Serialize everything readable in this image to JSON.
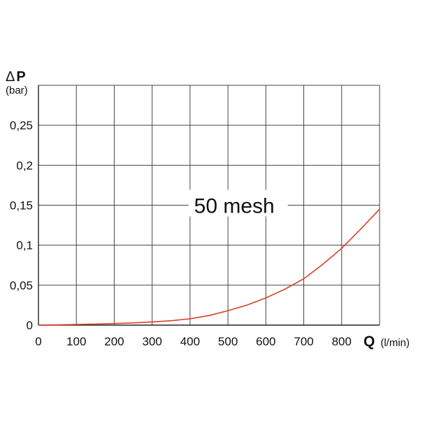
{
  "chart_data": {
    "type": "line",
    "y_axis": {
      "symbol": "Δ",
      "quantity": "P",
      "unit": "(bar)",
      "ylim": [
        0,
        0.3
      ],
      "ticks": [
        0,
        0.05,
        0.1,
        0.15,
        0.2,
        0.25
      ],
      "tick_labels": [
        "0",
        "0,05",
        "0,1",
        "0,15",
        "0,2",
        "0,25"
      ]
    },
    "x_axis": {
      "quantity": "Q",
      "unit": "(l/min)",
      "xlim": [
        0,
        900
      ],
      "ticks": [
        0,
        100,
        200,
        300,
        400,
        500,
        600,
        700,
        800
      ],
      "tick_labels": [
        "0",
        "100",
        "200",
        "300",
        "400",
        "500",
        "600",
        "700",
        "800"
      ]
    },
    "grid": true,
    "series": [
      {
        "name": "50 mesh",
        "color": "#d9402b",
        "x": [
          0,
          50,
          100,
          150,
          200,
          250,
          300,
          350,
          400,
          450,
          500,
          550,
          600,
          650,
          700,
          750,
          800,
          850,
          900
        ],
        "y": [
          0,
          0.0003,
          0.0008,
          0.0013,
          0.002,
          0.0028,
          0.004,
          0.0055,
          0.008,
          0.012,
          0.018,
          0.025,
          0.034,
          0.045,
          0.058,
          0.076,
          0.096,
          0.12,
          0.145
        ]
      }
    ]
  }
}
